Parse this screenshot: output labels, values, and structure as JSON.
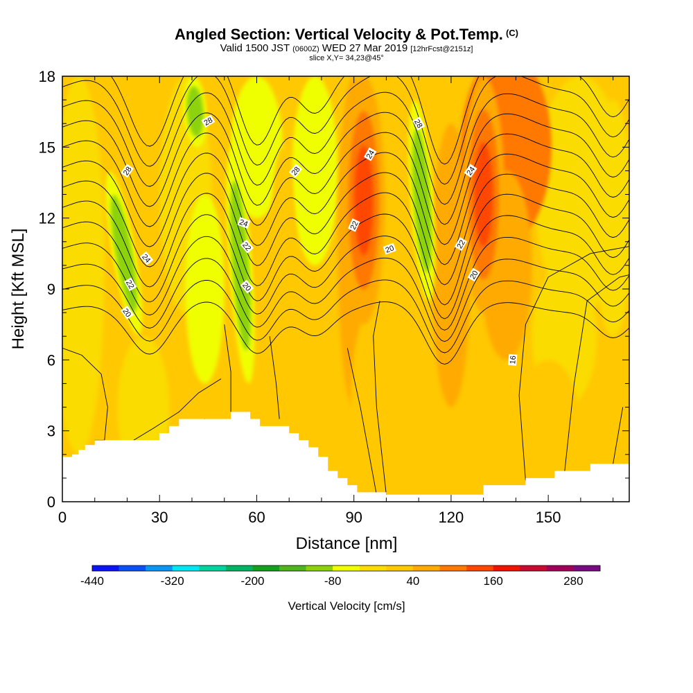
{
  "header": {
    "title": "Angled Section: Vertical Velocity & Pot.Temp.",
    "title_unit": "(C)",
    "valid_prefix": "Valid 1500 JST",
    "valid_utc": "(0600Z)",
    "valid_date": "WED 27 Mar 2019",
    "forecast": "[12hrFcst@2151z]",
    "slice": "slice X,Y= 34,23@45°"
  },
  "chart_data": {
    "type": "heatmap",
    "xlabel": "Distance [nm]",
    "ylabel": "Height [Kft MSL]",
    "xlim": [
      0,
      175
    ],
    "ylim": [
      0,
      18
    ],
    "x_ticks": [
      0,
      30,
      60,
      90,
      120,
      150
    ],
    "y_ticks": [
      0,
      3,
      6,
      9,
      12,
      15,
      18
    ],
    "grid": false,
    "shaded_field": {
      "name": "Vertical Velocity [cm/s]",
      "colorbar_labels": [
        "-440",
        "-320",
        "-200",
        "-80",
        "40",
        "160",
        "280"
      ],
      "colorbar_label_values": [
        -440,
        -320,
        -200,
        -80,
        40,
        160,
        280
      ],
      "levels": [
        -440,
        -400,
        -360,
        -320,
        -280,
        -240,
        -200,
        -160,
        -120,
        -80,
        -40,
        0,
        40,
        80,
        120,
        160,
        200,
        240,
        280,
        320
      ],
      "colors": [
        "#0a14f5",
        "#0a50f5",
        "#0a96f5",
        "#00e6f5",
        "#00d2a0",
        "#00b464",
        "#14a01e",
        "#50b41e",
        "#8cd20a",
        "#f0ff00",
        "#fadc00",
        "#ffc800",
        "#ffaa00",
        "#ff7800",
        "#ff4600",
        "#f01400",
        "#c80a32",
        "#a0005a",
        "#780a82"
      ],
      "core_values": [
        {
          "label": "updraft-core",
          "x": 93,
          "z_range": [
            7.5,
            18
          ],
          "value": 150
        },
        {
          "label": "updraft-core",
          "x": 130,
          "z_range": [
            8,
            18
          ],
          "value": 140
        },
        {
          "label": "downdraft-core",
          "x": 111,
          "z_range": [
            8.5,
            17
          ],
          "value": -110
        },
        {
          "label": "downdraft-core",
          "x": 19,
          "z_range": [
            7,
            14
          ],
          "value": -110
        },
        {
          "label": "downdraft-core",
          "x": 55,
          "z_range": [
            5,
            15
          ],
          "value": -100
        },
        {
          "label": "downdraft-core",
          "x": 41,
          "z_range": [
            15,
            18
          ],
          "value": -100
        }
      ]
    },
    "contour_field": {
      "name": "Pot.Temp. (C)",
      "labels": [
        "28",
        "28",
        "28",
        "28",
        "24",
        "24",
        "24",
        "24",
        "22",
        "22",
        "22",
        "22",
        "20",
        "20",
        "20",
        "20",
        "16"
      ]
    },
    "terrain_profile": {
      "x": [
        0,
        3,
        5,
        7,
        10,
        30,
        33,
        36,
        39,
        52,
        58,
        61,
        64,
        70,
        73,
        76,
        79,
        82,
        85,
        88,
        91,
        100,
        130,
        143,
        152,
        163,
        175
      ],
      "height": [
        1.9,
        2.0,
        2.2,
        2.4,
        2.6,
        2.9,
        3.2,
        3.5,
        3.5,
        3.8,
        3.5,
        3.2,
        3.2,
        2.9,
        2.6,
        2.3,
        1.9,
        1.3,
        1.0,
        0.7,
        0.4,
        0.3,
        0.7,
        1.0,
        1.3,
        1.6,
        1.6
      ]
    }
  }
}
